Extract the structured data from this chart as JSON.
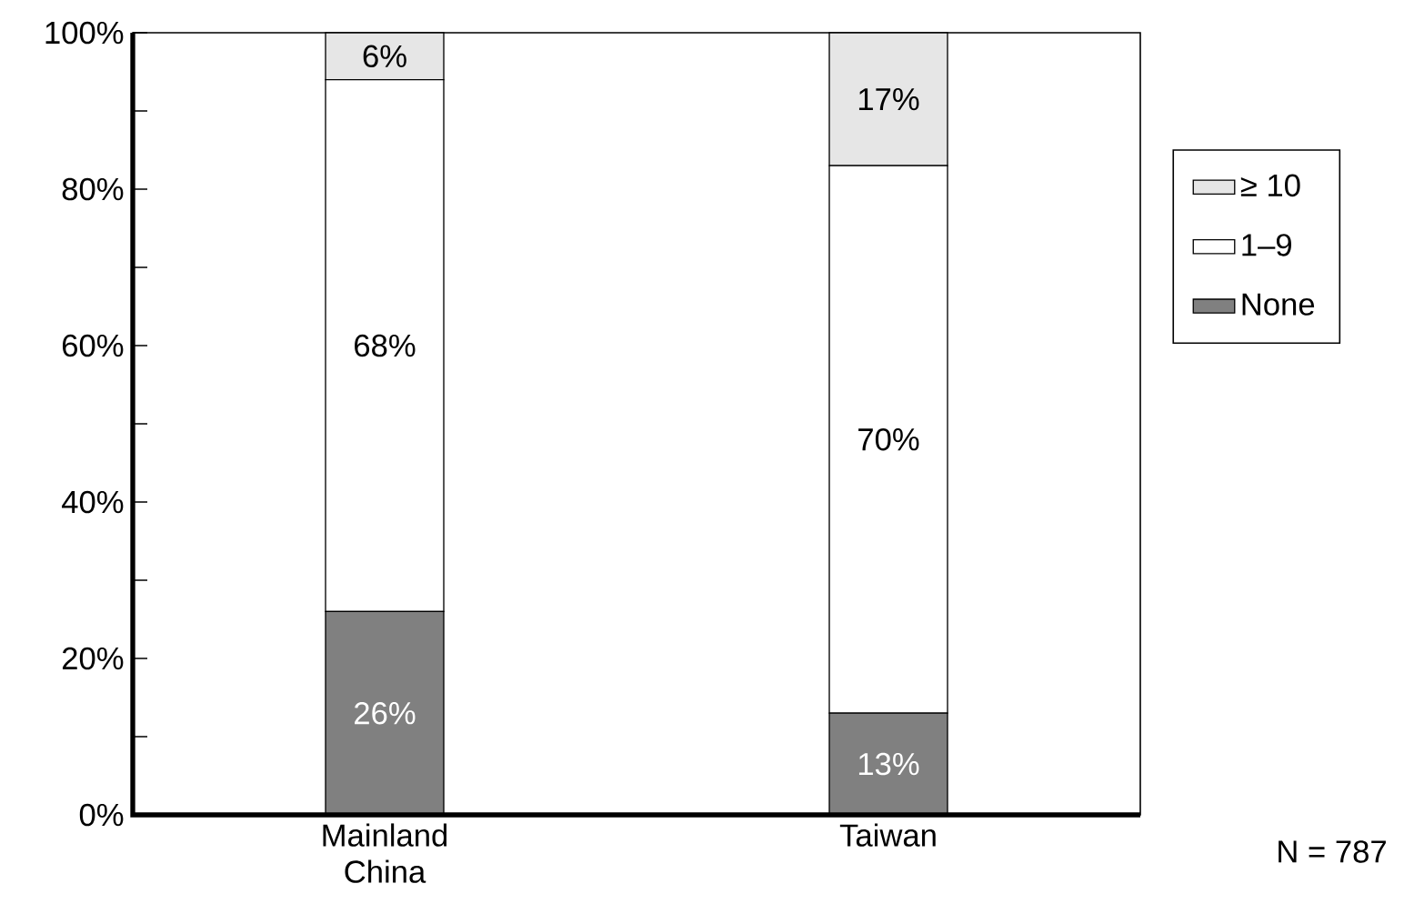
{
  "chart_data": {
    "type": "bar",
    "stacked": true,
    "categories": [
      "Mainland China",
      "Taiwan"
    ],
    "series": [
      {
        "name": "None",
        "color": "#808080",
        "values": [
          26,
          13
        ],
        "value_labels": [
          "26%",
          "13%"
        ]
      },
      {
        "name": "1–9",
        "color": "#ffffff",
        "values": [
          68,
          70
        ],
        "value_labels": [
          "68%",
          "70%"
        ]
      },
      {
        "name": "≥ 10",
        "color": "#e6e6e6",
        "values": [
          6,
          17
        ],
        "value_labels": [
          "6%",
          "17%"
        ]
      }
    ],
    "ylim": [
      0,
      100
    ],
    "yticks": [
      {
        "value": 0,
        "label": "0%"
      },
      {
        "value": 10,
        "label": null
      },
      {
        "value": 20,
        "label": "20%"
      },
      {
        "value": 30,
        "label": null
      },
      {
        "value": 40,
        "label": "40%"
      },
      {
        "value": 50,
        "label": null
      },
      {
        "value": 60,
        "label": "60%"
      },
      {
        "value": 70,
        "label": null
      },
      {
        "value": 80,
        "label": "80%"
      },
      {
        "value": 90,
        "label": null
      },
      {
        "value": 100,
        "label": "100%"
      }
    ],
    "legend": "right",
    "annotations": [
      "N = 787"
    ]
  }
}
